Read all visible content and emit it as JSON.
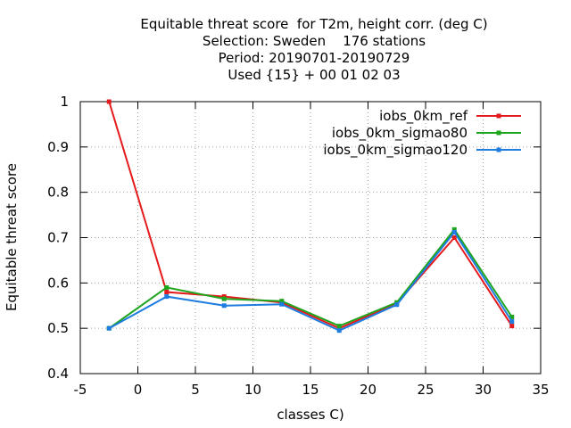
{
  "chart_data": {
    "type": "line",
    "title_lines": [
      "Equitable threat score  for T2m, height corr. (deg C)",
      "Selection: Sweden    176 stations",
      "Period: 20190701-20190729",
      "Used {15} + 00 01 02 03"
    ],
    "xlabel": "classes C)",
    "ylabel": "Equitable threat score",
    "xlim": [
      -5,
      35
    ],
    "ylim": [
      0.4,
      1.0
    ],
    "xticks": [
      -5,
      0,
      5,
      10,
      15,
      20,
      25,
      30,
      35
    ],
    "yticks": [
      0.4,
      0.5,
      0.6,
      0.7,
      0.8,
      0.9,
      1.0
    ],
    "ytick_labels": [
      "0.4",
      "0.5",
      "0.6",
      "0.7",
      "0.8",
      "0.9",
      "1"
    ],
    "grid": true,
    "legend_position": "top-right",
    "x": [
      -2.5,
      2.5,
      7.5,
      12.5,
      17.5,
      22.5,
      27.5,
      32.5
    ],
    "series": [
      {
        "name": "iobs_0km_ref",
        "color": "#e41a1c",
        "values": [
          1.0,
          0.58,
          0.57,
          0.557,
          0.5,
          0.555,
          0.7,
          0.505
        ]
      },
      {
        "name": "iobs_0km_sigmao80",
        "color": "#1ea51e",
        "values": [
          0.5,
          0.59,
          0.565,
          0.56,
          0.505,
          0.557,
          0.718,
          0.525
        ]
      },
      {
        "name": "iobs_0km_sigmao120",
        "color": "#1f7de0",
        "values": [
          0.5,
          0.57,
          0.55,
          0.553,
          0.495,
          0.552,
          0.712,
          0.515
        ]
      }
    ]
  }
}
